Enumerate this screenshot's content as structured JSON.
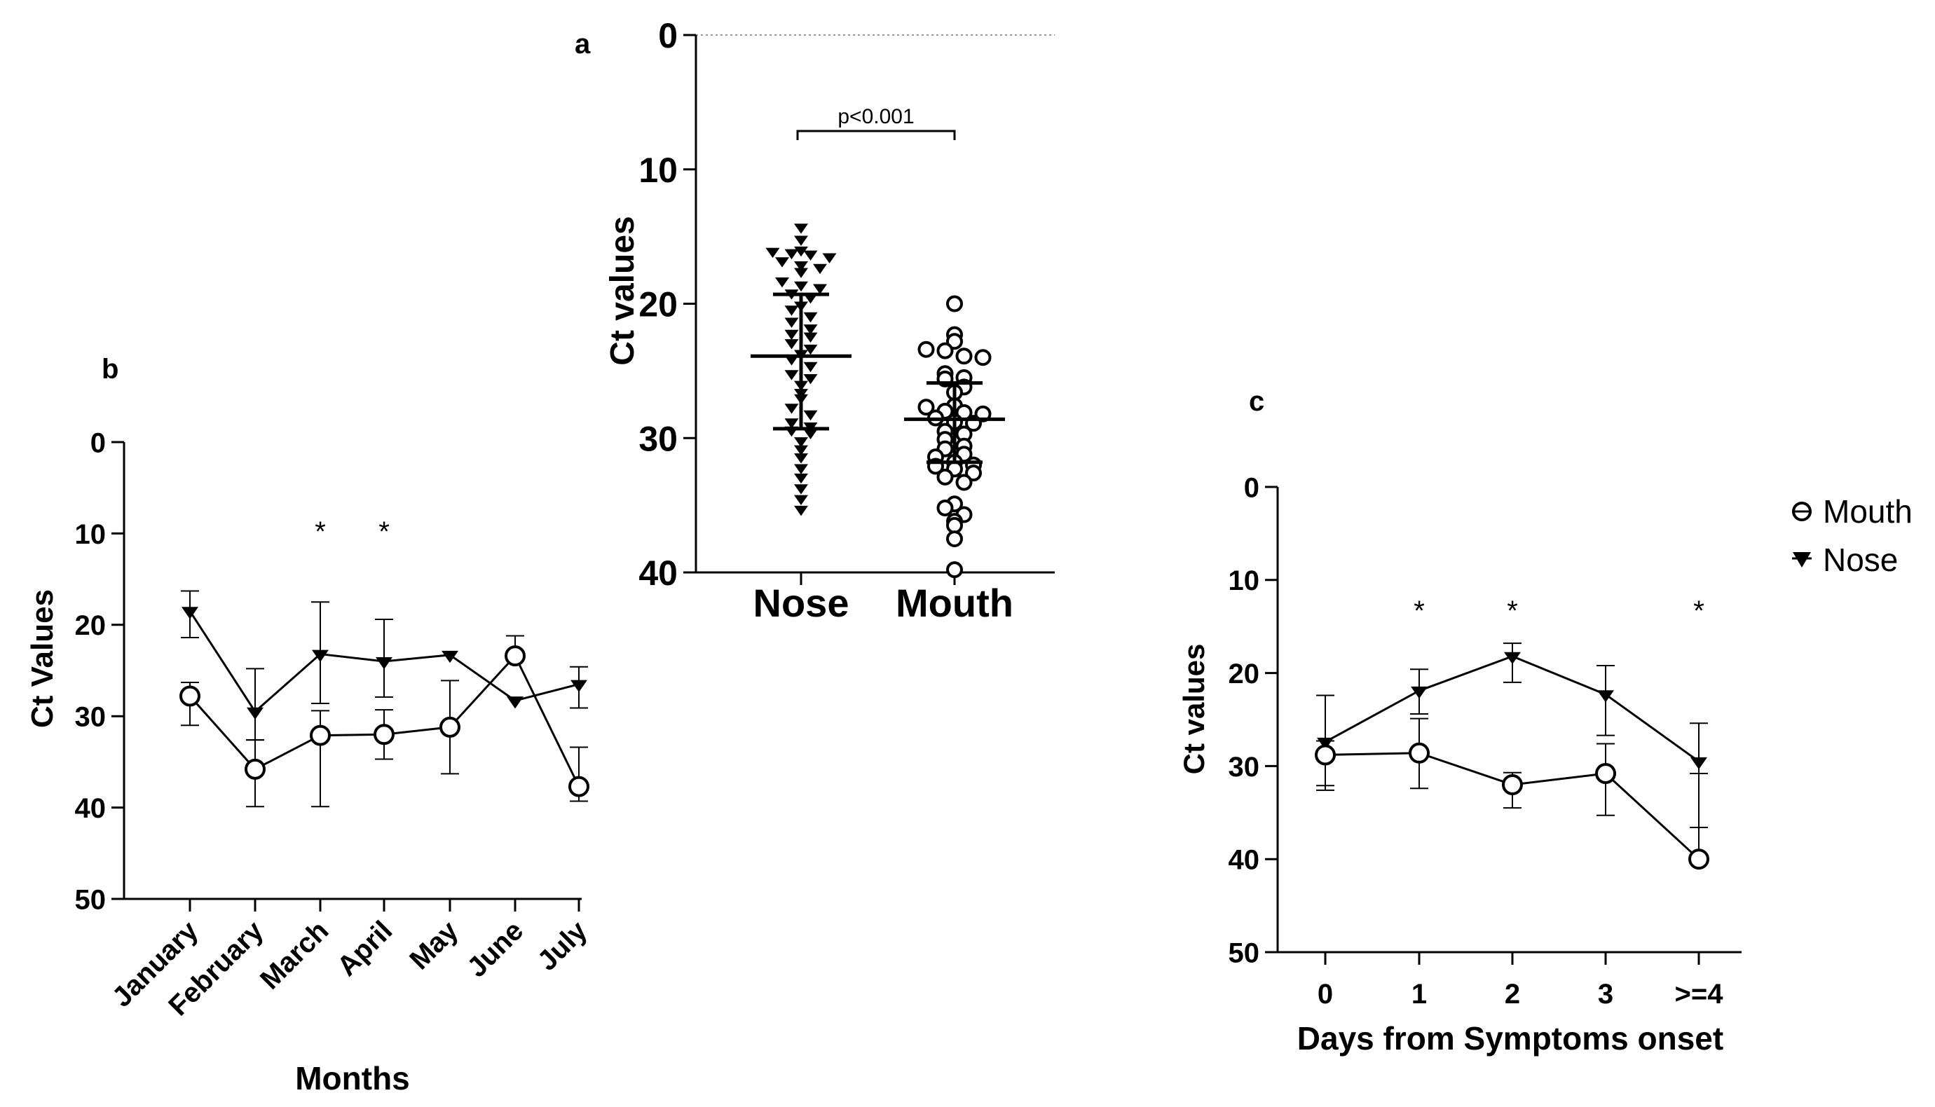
{
  "chart_data": [
    {
      "panel": "a",
      "type": "scatter",
      "ylabel": "Ct values",
      "ylim": [
        0,
        40
      ],
      "y_inverted": true,
      "yticks": [
        "0",
        "10",
        "20",
        "30",
        "40"
      ],
      "categories": [
        "Nose",
        "Mouth"
      ],
      "annotation": "p<0.001",
      "series": [
        {
          "name": "Nose",
          "marker": "filled-triangle-down",
          "values": [
            14.3,
            15.2,
            16.0,
            16.1,
            16.2,
            16.3,
            16.5,
            16.8,
            17.1,
            17.3,
            17.6,
            18.3,
            18.6,
            18.8,
            19.2,
            19.5,
            20.1,
            20.4,
            20.9,
            21.3,
            21.8,
            22.2,
            22.4,
            22.9,
            23.3,
            23.7,
            24.1,
            24.6,
            25.2,
            25.5,
            26.0,
            26.6,
            27.0,
            27.7,
            28.2,
            28.8,
            29.1,
            29.4,
            29.6,
            30.2,
            30.8,
            31.4,
            32.2,
            32.9,
            33.7,
            34.5,
            35.3
          ],
          "mean": 23.9,
          "sd_low": 19.3,
          "sd_high": 29.3
        },
        {
          "name": "Mouth",
          "marker": "open-circle",
          "values": [
            20.0,
            22.3,
            22.8,
            23.4,
            23.5,
            23.9,
            24.0,
            25.2,
            25.5,
            25.6,
            26.2,
            26.6,
            27.6,
            27.7,
            28.0,
            28.1,
            28.2,
            28.5,
            28.8,
            28.9,
            29.5,
            29.7,
            30.1,
            30.6,
            30.8,
            31.2,
            31.4,
            31.8,
            32.0,
            32.1,
            32.3,
            32.6,
            32.9,
            33.3,
            34.9,
            35.2,
            35.7,
            36.2,
            36.5,
            37.5,
            39.8
          ],
          "mean": 28.6,
          "sd_low": 25.9,
          "sd_high": 31.8
        }
      ]
    },
    {
      "panel": "b",
      "type": "line",
      "xlabel": "Months",
      "ylabel": "Ct Values",
      "ylim": [
        0,
        50
      ],
      "y_inverted": true,
      "yticks": [
        "0",
        "10",
        "20",
        "30",
        "40",
        "50"
      ],
      "categories": [
        "January",
        "February",
        "March",
        "April",
        "May",
        "June",
        "July"
      ],
      "significance": [
        "",
        "",
        "*",
        "*",
        "",
        "",
        ""
      ],
      "series": [
        {
          "name": "Nose",
          "marker": "filled-triangle-down",
          "values": [
            18.5,
            29.5,
            23.2,
            24.0,
            23.3,
            28.3,
            26.5
          ],
          "err_low": [
            16.3,
            24.8,
            17.5,
            19.4,
            null,
            null,
            24.6
          ],
          "err_high": [
            21.4,
            32.6,
            28.6,
            27.9,
            null,
            null,
            29.1
          ]
        },
        {
          "name": "Mouth",
          "marker": "open-circle",
          "values": [
            27.8,
            35.8,
            32.1,
            32.0,
            31.2,
            23.4,
            37.7
          ],
          "err_low": [
            26.3,
            32.6,
            29.4,
            29.3,
            26.1,
            21.2,
            33.4
          ],
          "err_high": [
            31.0,
            39.9,
            39.9,
            34.7,
            36.3,
            null,
            39.3
          ]
        }
      ]
    },
    {
      "panel": "c",
      "type": "line",
      "xlabel": "Days from Symptoms onset",
      "ylabel": "Ct values",
      "ylim": [
        0,
        50
      ],
      "y_inverted": true,
      "yticks": [
        "0",
        "10",
        "20",
        "30",
        "40",
        "50"
      ],
      "categories": [
        "0",
        "1",
        "2",
        "3",
        ">=4"
      ],
      "significance": [
        "",
        "*",
        "*",
        "",
        "*"
      ],
      "series": [
        {
          "name": "Nose",
          "marker": "filled-triangle-down",
          "values": [
            27.4,
            21.9,
            18.2,
            22.3,
            29.5
          ],
          "err_low": [
            22.4,
            19.6,
            16.8,
            19.2,
            25.4
          ],
          "err_high": [
            32.1,
            24.4,
            21.0,
            26.7,
            36.6
          ]
        },
        {
          "name": "Mouth",
          "marker": "open-circle",
          "values": [
            28.8,
            28.6,
            32.0,
            30.8,
            40.0
          ],
          "err_low": [
            27.3,
            24.9,
            30.7,
            27.6,
            30.8
          ],
          "err_high": [
            32.6,
            32.4,
            34.5,
            35.3,
            null
          ]
        }
      ]
    }
  ],
  "legend": {
    "mouth_label": "Mouth",
    "nose_label": "Nose"
  }
}
